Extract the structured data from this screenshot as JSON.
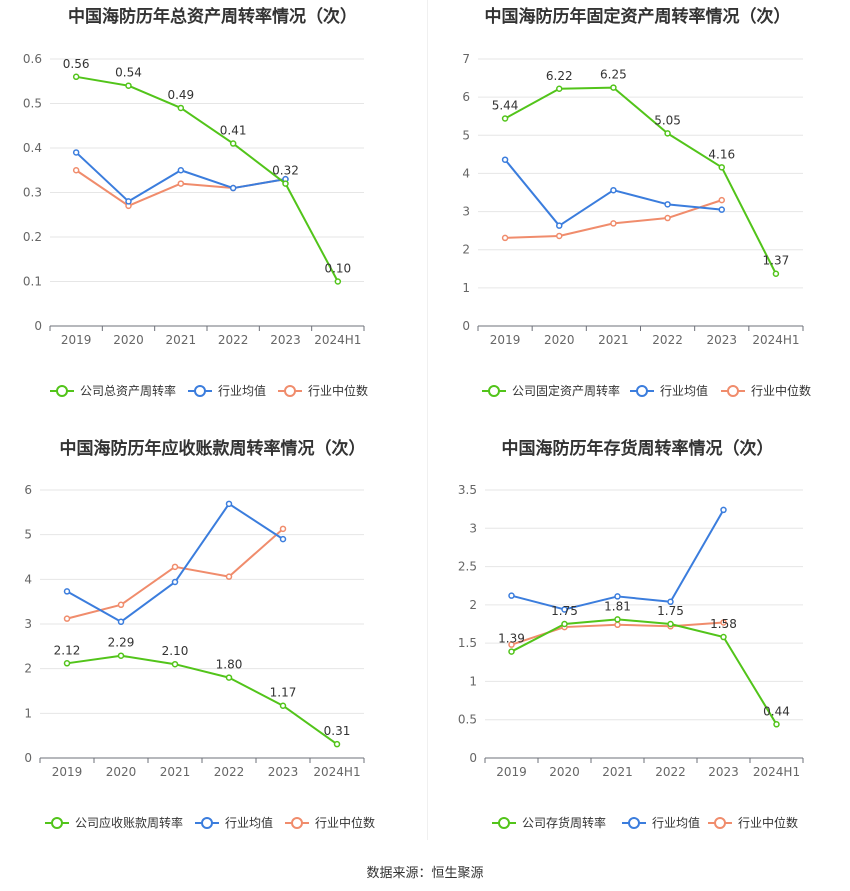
{
  "source_label": "数据来源：恒生聚源",
  "colors": {
    "company": "#52c41a",
    "avg": "#3b7ddd",
    "median": "#f08c6c"
  },
  "legend_avg": "行业均值",
  "legend_median": "行业中位数",
  "chart_data": [
    {
      "type": "line",
      "title": "中国海防历年总资产周转率情况（次）",
      "x": [
        "2019",
        "2020",
        "2021",
        "2022",
        "2023",
        "2024H1"
      ],
      "ylim": [
        0,
        0.6
      ],
      "yticks": [
        "0",
        "0.1",
        "0.2",
        "0.3",
        "0.4",
        "0.5",
        "0.6"
      ],
      "series": [
        {
          "name": "公司总资产周转率",
          "values": [
            0.56,
            0.54,
            0.49,
            0.41,
            0.32,
            0.1
          ],
          "labels": [
            "0.56",
            "0.54",
            "0.49",
            "0.41",
            "0.32",
            "0.10"
          ]
        },
        {
          "name": "行业均值",
          "values": [
            0.39,
            0.28,
            0.35,
            0.31,
            0.33,
            null
          ]
        },
        {
          "name": "行业中位数",
          "values": [
            0.35,
            0.27,
            0.32,
            0.31,
            0.33,
            null
          ]
        }
      ]
    },
    {
      "type": "line",
      "title": "中国海防历年固定资产周转率情况（次）",
      "x": [
        "2019",
        "2020",
        "2021",
        "2022",
        "2023",
        "2024H1"
      ],
      "ylim": [
        0,
        7
      ],
      "yticks": [
        "0",
        "1",
        "2",
        "3",
        "4",
        "5",
        "6",
        "7"
      ],
      "series": [
        {
          "name": "公司固定资产周转率",
          "values": [
            5.44,
            6.22,
            6.25,
            5.05,
            4.16,
            1.37
          ],
          "labels": [
            "5.44",
            "6.22",
            "6.25",
            "5.05",
            "4.16",
            "1.37"
          ]
        },
        {
          "name": "行业均值",
          "values": [
            4.36,
            2.63,
            3.56,
            3.19,
            3.05,
            null
          ]
        },
        {
          "name": "行业中位数",
          "values": [
            2.31,
            2.36,
            2.69,
            2.83,
            3.3,
            null
          ]
        }
      ]
    },
    {
      "type": "line",
      "title": "中国海防历年应收账款周转率情况（次）",
      "x": [
        "2019",
        "2020",
        "2021",
        "2022",
        "2023",
        "2024H1"
      ],
      "ylim": [
        0,
        6
      ],
      "yticks": [
        "0",
        "1",
        "2",
        "3",
        "4",
        "5",
        "6"
      ],
      "series": [
        {
          "name": "公司应收账款周转率",
          "values": [
            2.12,
            2.29,
            2.1,
            1.8,
            1.17,
            0.31
          ],
          "labels": [
            "2.12",
            "2.29",
            "2.10",
            "1.80",
            "1.17",
            "0.31"
          ]
        },
        {
          "name": "行业均值",
          "values": [
            3.73,
            3.05,
            3.94,
            5.69,
            4.9,
            null
          ]
        },
        {
          "name": "行业中位数",
          "values": [
            3.12,
            3.43,
            4.28,
            4.06,
            5.13,
            null
          ]
        }
      ]
    },
    {
      "type": "line",
      "title": "中国海防历年存货周转率情况（次）",
      "x": [
        "2019",
        "2020",
        "2021",
        "2022",
        "2023",
        "2024H1"
      ],
      "ylim": [
        0,
        3.5
      ],
      "yticks": [
        "0",
        "0.5",
        "1",
        "1.5",
        "2",
        "2.5",
        "3",
        "3.5"
      ],
      "series": [
        {
          "name": "公司存货周转率",
          "values": [
            1.39,
            1.75,
            1.81,
            1.75,
            1.58,
            0.44
          ],
          "labels": [
            "1.39",
            "1.75",
            "1.81",
            "1.75",
            "1.58",
            "0.44"
          ]
        },
        {
          "name": "行业均值",
          "values": [
            2.12,
            1.94,
            2.11,
            2.04,
            3.24,
            null
          ]
        },
        {
          "name": "行业中位数",
          "values": [
            1.48,
            1.71,
            1.74,
            1.72,
            1.77,
            null
          ]
        }
      ]
    }
  ]
}
